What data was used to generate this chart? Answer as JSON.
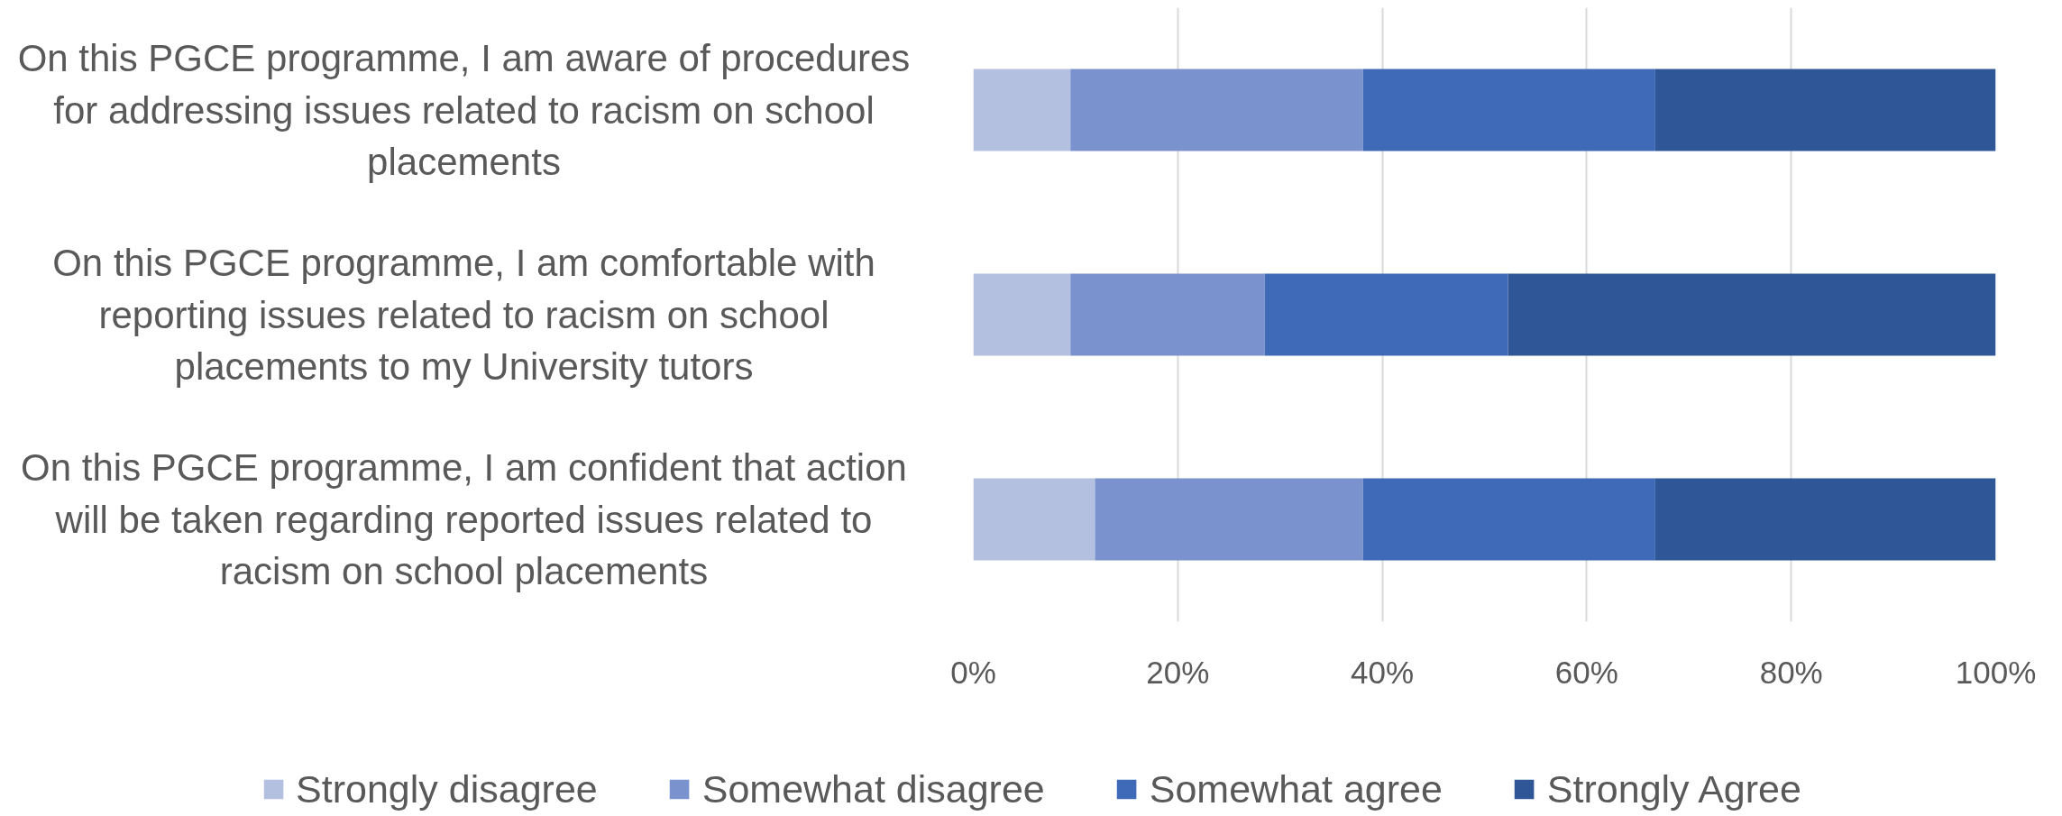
{
  "chart_data": {
    "type": "bar",
    "orientation": "horizontal",
    "stacked": true,
    "categories": [
      "On this PGCE programme, I am aware of procedures for addressing issues related to racism on school placements",
      "On this PGCE programme, I am comfortable with reporting issues related to racism on school placements to my University tutors",
      "On this PGCE programme, I am confident that action will be taken regarding reported issues related to racism on school placements"
    ],
    "series": [
      {
        "name": "Strongly disagree",
        "color": "#b4c0e0",
        "values": [
          9.5,
          9.5,
          11.9
        ]
      },
      {
        "name": "Somewhat disagree",
        "color": "#7a92cd",
        "values": [
          28.6,
          19.0,
          26.2
        ]
      },
      {
        "name": "Somewhat agree",
        "color": "#3e6ab7",
        "values": [
          28.6,
          23.8,
          28.6
        ]
      },
      {
        "name": "Strongly Agree",
        "color": "#2f5797",
        "values": [
          33.3,
          47.7,
          33.3
        ]
      }
    ],
    "xlim": [
      0,
      100
    ],
    "xticks": [
      {
        "value": 0,
        "label": "0%"
      },
      {
        "value": 20,
        "label": "20%"
      },
      {
        "value": 40,
        "label": "40%"
      },
      {
        "value": 60,
        "label": "60%"
      },
      {
        "value": 80,
        "label": "80%"
      },
      {
        "value": 100,
        "label": "100%"
      }
    ],
    "grid": "x",
    "legend": "bottom"
  }
}
